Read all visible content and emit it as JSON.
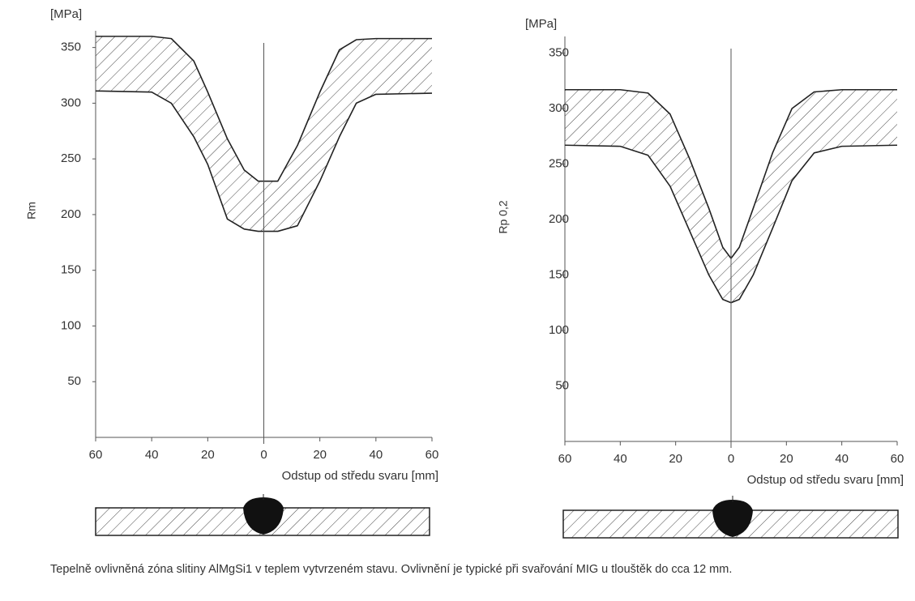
{
  "charts": [
    {
      "chart_data": {
        "type": "band",
        "unit_label": "[MPa]",
        "y_label": "Rm",
        "x_label": "Odstup od středu svaru [mm]",
        "x": [
          -60,
          -40,
          -33,
          -25,
          -20,
          -13,
          -7,
          -2,
          0,
          5,
          12,
          20,
          27,
          33,
          40,
          60
        ],
        "series": [
          {
            "color": "#222222",
            "values": [
              360,
              360,
              358,
              338,
              310,
              268,
              240,
              230,
              230,
              230,
              262,
              310,
              348,
              357,
              358,
              358
            ]
          },
          {
            "color": "#222222",
            "values": [
              311,
              310,
              300,
              270,
              245,
              196,
              187,
              185,
              185,
              185,
              190,
              230,
              270,
              300,
              308,
              309
            ]
          }
        ],
        "hatch": true,
        "xlim": [
          -60,
          60
        ],
        "xticks": [
          {
            "value": -60,
            "label": "60"
          },
          {
            "value": -40,
            "label": "40"
          },
          {
            "value": -20,
            "label": "20"
          },
          0,
          20,
          40,
          60
        ],
        "ylim": [
          0,
          365
        ],
        "yticks": [
          50,
          100,
          150,
          200,
          250,
          300,
          350
        ]
      }
    },
    {
      "chart_data": {
        "type": "band",
        "unit_label": "[MPa]",
        "y_label": "Rp 0,2",
        "x_label": "Odstup od středu svaru [mm]",
        "x": [
          -60,
          -40,
          -30,
          -22,
          -15,
          -8,
          -3,
          0,
          3,
          8,
          15,
          22,
          30,
          40,
          60
        ],
        "series": [
          {
            "color": "#222222",
            "values": [
              317,
              317,
              314,
              295,
              255,
              210,
              175,
              165,
              175,
              210,
              260,
              300,
              315,
              317,
              317
            ]
          },
          {
            "color": "#222222",
            "values": [
              267,
              266,
              258,
              230,
              190,
              150,
              128,
              125,
              128,
              150,
              192,
              235,
              260,
              266,
              267
            ]
          }
        ],
        "hatch": true,
        "xlim": [
          -60,
          60
        ],
        "xticks": [
          {
            "value": -60,
            "label": "60"
          },
          {
            "value": -40,
            "label": "40"
          },
          {
            "value": -20,
            "label": "20"
          },
          0,
          20,
          40,
          60
        ],
        "ylim": [
          0,
          365
        ],
        "yticks": [
          50,
          100,
          150,
          200,
          250,
          300,
          350
        ]
      }
    }
  ],
  "caption": "Tepelně ovlivněná zóna slitiny AlMgSi1 v teplem vytvrzeném stavu. Ovlivnění je typické při svařování MIG u tlouštěk do cca 12 mm."
}
